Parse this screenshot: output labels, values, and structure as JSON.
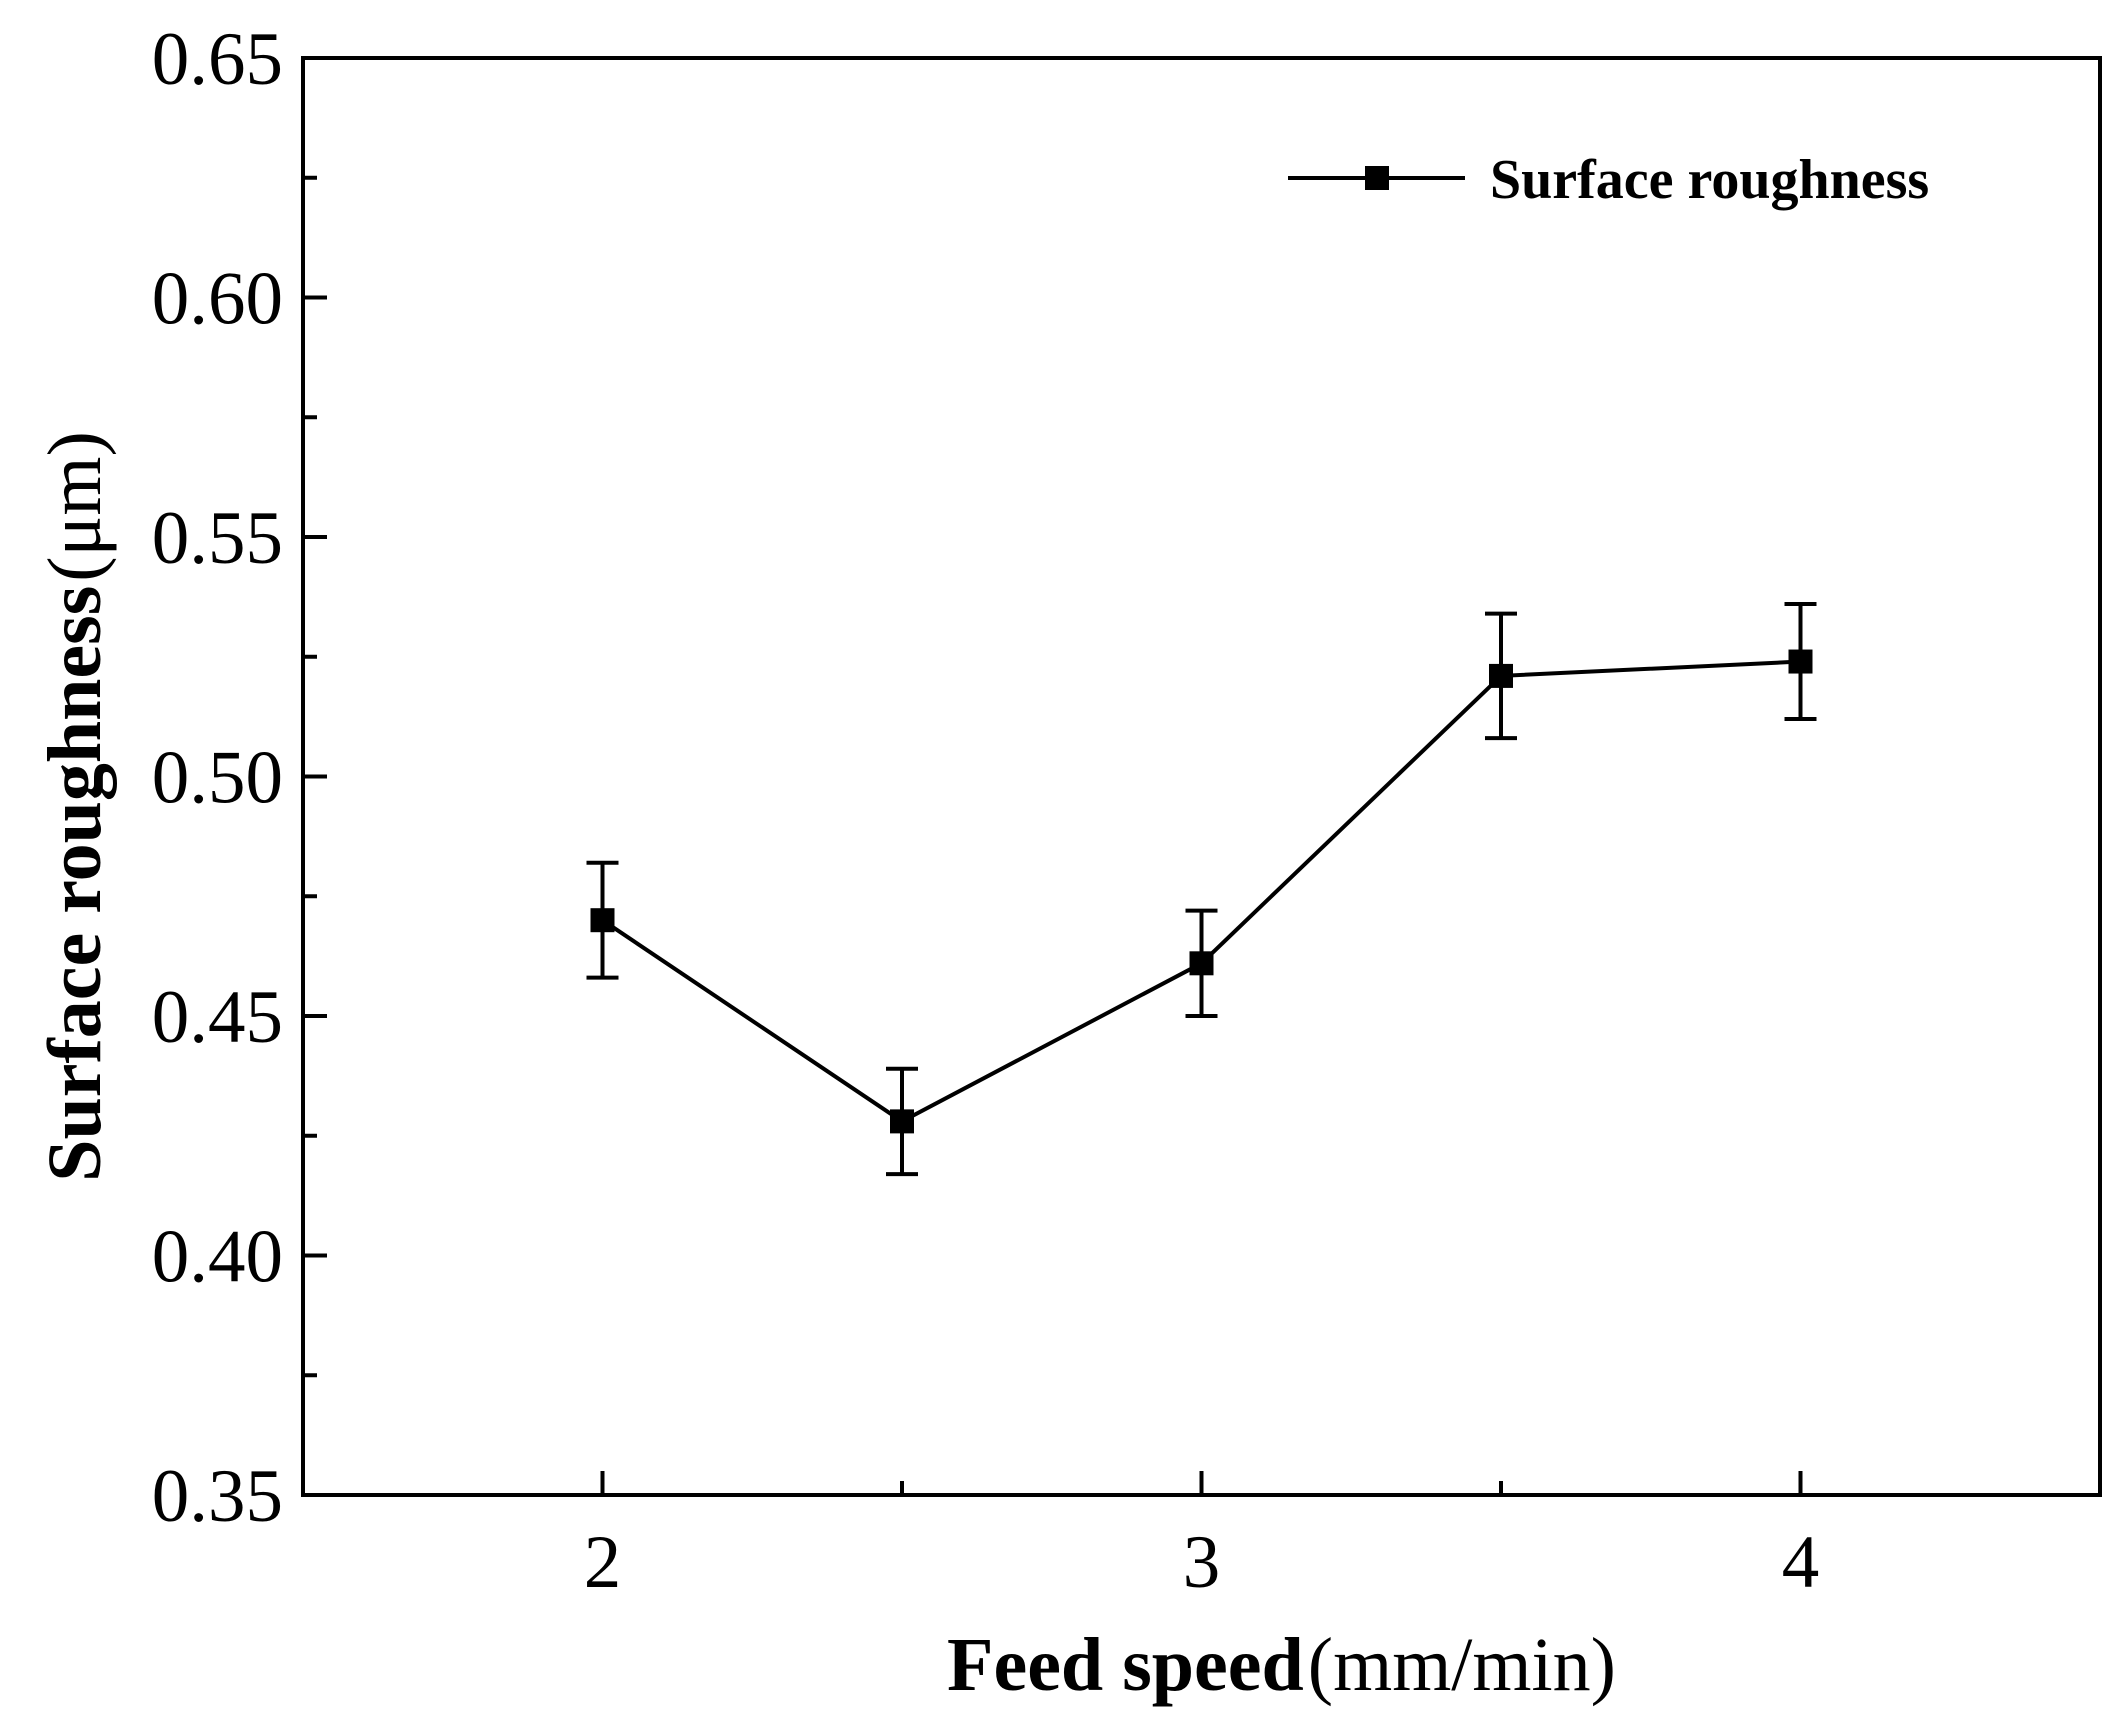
{
  "chart_data": {
    "type": "line",
    "title": "",
    "xlabel_bold": "Feed speed",
    "xlabel_unit": "(mm/min)",
    "ylabel_bold": "Surface roughness",
    "ylabel_unit": "(μm)",
    "xlim": [
      1.5,
      4.5
    ],
    "ylim": [
      0.35,
      0.65
    ],
    "x_ticks": [
      2,
      3,
      4
    ],
    "x_tick_labels": [
      "2",
      "3",
      "4"
    ],
    "x_minor_ticks": [
      2.5,
      3.5
    ],
    "y_ticks": [
      0.35,
      0.4,
      0.45,
      0.5,
      0.55,
      0.6,
      0.65
    ],
    "y_tick_labels": [
      "0.35",
      "0.40",
      "0.45",
      "0.50",
      "0.55",
      "0.60",
      "0.65"
    ],
    "y_minor_ticks": [
      0.375,
      0.425,
      0.475,
      0.525,
      0.575,
      0.625
    ],
    "grid": false,
    "legend_position": "top-right",
    "series": [
      {
        "name": "Surface roughness",
        "color": "#000000",
        "marker": "square",
        "x": [
          2.0,
          2.5,
          3.0,
          3.5,
          4.0
        ],
        "y": [
          0.47,
          0.428,
          0.461,
          0.521,
          0.524
        ],
        "error": [
          0.012,
          0.011,
          0.011,
          0.013,
          0.012
        ]
      }
    ]
  }
}
